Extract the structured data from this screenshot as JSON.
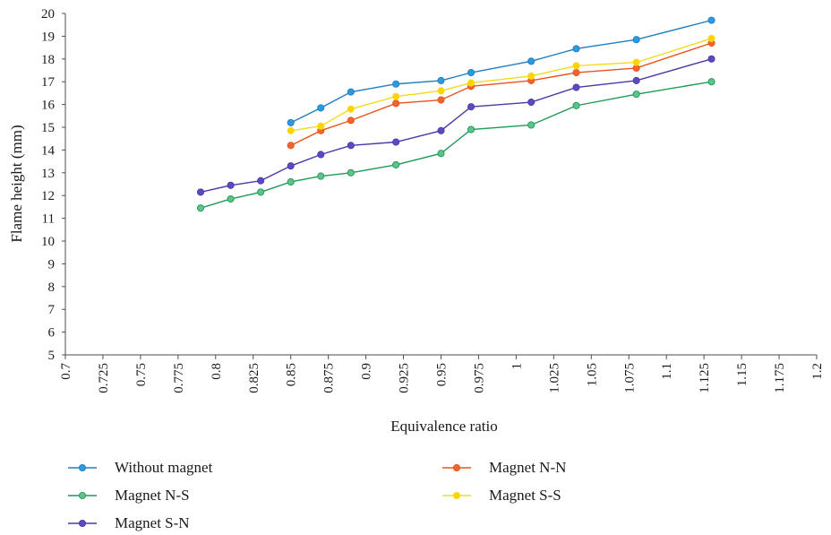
{
  "chart_data": {
    "type": "line",
    "xlabel": "Equivalence ratio",
    "ylabel": "Flame height (mm)",
    "xlim": [
      0.7,
      1.2
    ],
    "ylim": [
      5,
      20
    ],
    "x_ticks": [
      "0.7",
      "0.725",
      "0.75",
      "0.775",
      "0.8",
      "0.825",
      "0.85",
      "0.875",
      "0.9",
      "0.925",
      "0.95",
      "0.975",
      "1",
      "1.025",
      "1.05",
      "1.075",
      "1.1",
      "1.125",
      "1.15",
      "1.175",
      "1.2"
    ],
    "y_ticks": [
      "5",
      "6",
      "7",
      "8",
      "9",
      "10",
      "11",
      "12",
      "13",
      "14",
      "15",
      "16",
      "17",
      "18",
      "19",
      "20"
    ],
    "grid": false,
    "legend_position": "bottom",
    "series": [
      {
        "name": "Without magnet",
        "color": "#1f7fc0",
        "marker_color": "#2b9be0",
        "x": [
          0.85,
          0.87,
          0.89,
          0.92,
          0.95,
          0.97,
          1.01,
          1.04,
          1.08,
          1.13
        ],
        "y": [
          15.2,
          15.85,
          16.55,
          16.9,
          17.05,
          17.4,
          17.9,
          18.45,
          18.85,
          19.7
        ]
      },
      {
        "name": "Magnet N-N",
        "color": "#e8531f",
        "marker_color": "#f0652e",
        "x": [
          0.85,
          0.87,
          0.89,
          0.92,
          0.95,
          0.97,
          1.01,
          1.04,
          1.08,
          1.13
        ],
        "y": [
          14.2,
          14.85,
          15.3,
          16.05,
          16.2,
          16.8,
          17.05,
          17.4,
          17.6,
          18.7
        ]
      },
      {
        "name": "Magnet N-S",
        "color": "#1f9a55",
        "marker_color": "#5cc38a",
        "x": [
          0.79,
          0.81,
          0.83,
          0.85,
          0.87,
          0.89,
          0.92,
          0.95,
          0.97,
          1.01,
          1.04,
          1.08,
          1.13
        ],
        "y": [
          11.45,
          11.85,
          12.15,
          12.6,
          12.85,
          13.0,
          13.35,
          13.85,
          14.9,
          15.1,
          15.95,
          16.45,
          17.0
        ]
      },
      {
        "name": "Magnet S-S",
        "color": "#f2dc1a",
        "marker_color": "#ffd200",
        "x": [
          0.85,
          0.87,
          0.89,
          0.92,
          0.95,
          0.97,
          1.01,
          1.04,
          1.08,
          1.13
        ],
        "y": [
          14.85,
          15.05,
          15.8,
          16.35,
          16.6,
          16.95,
          17.25,
          17.7,
          17.85,
          18.9
        ]
      },
      {
        "name": "Magnet S-N",
        "color": "#4a3aa8",
        "marker_color": "#5a4cc0",
        "x": [
          0.79,
          0.81,
          0.83,
          0.85,
          0.87,
          0.89,
          0.92,
          0.95,
          0.97,
          1.01,
          1.04,
          1.08,
          1.13
        ],
        "y": [
          12.15,
          12.45,
          12.65,
          13.3,
          13.8,
          14.2,
          14.35,
          14.85,
          15.9,
          16.1,
          16.75,
          17.05,
          18.0
        ]
      }
    ]
  }
}
